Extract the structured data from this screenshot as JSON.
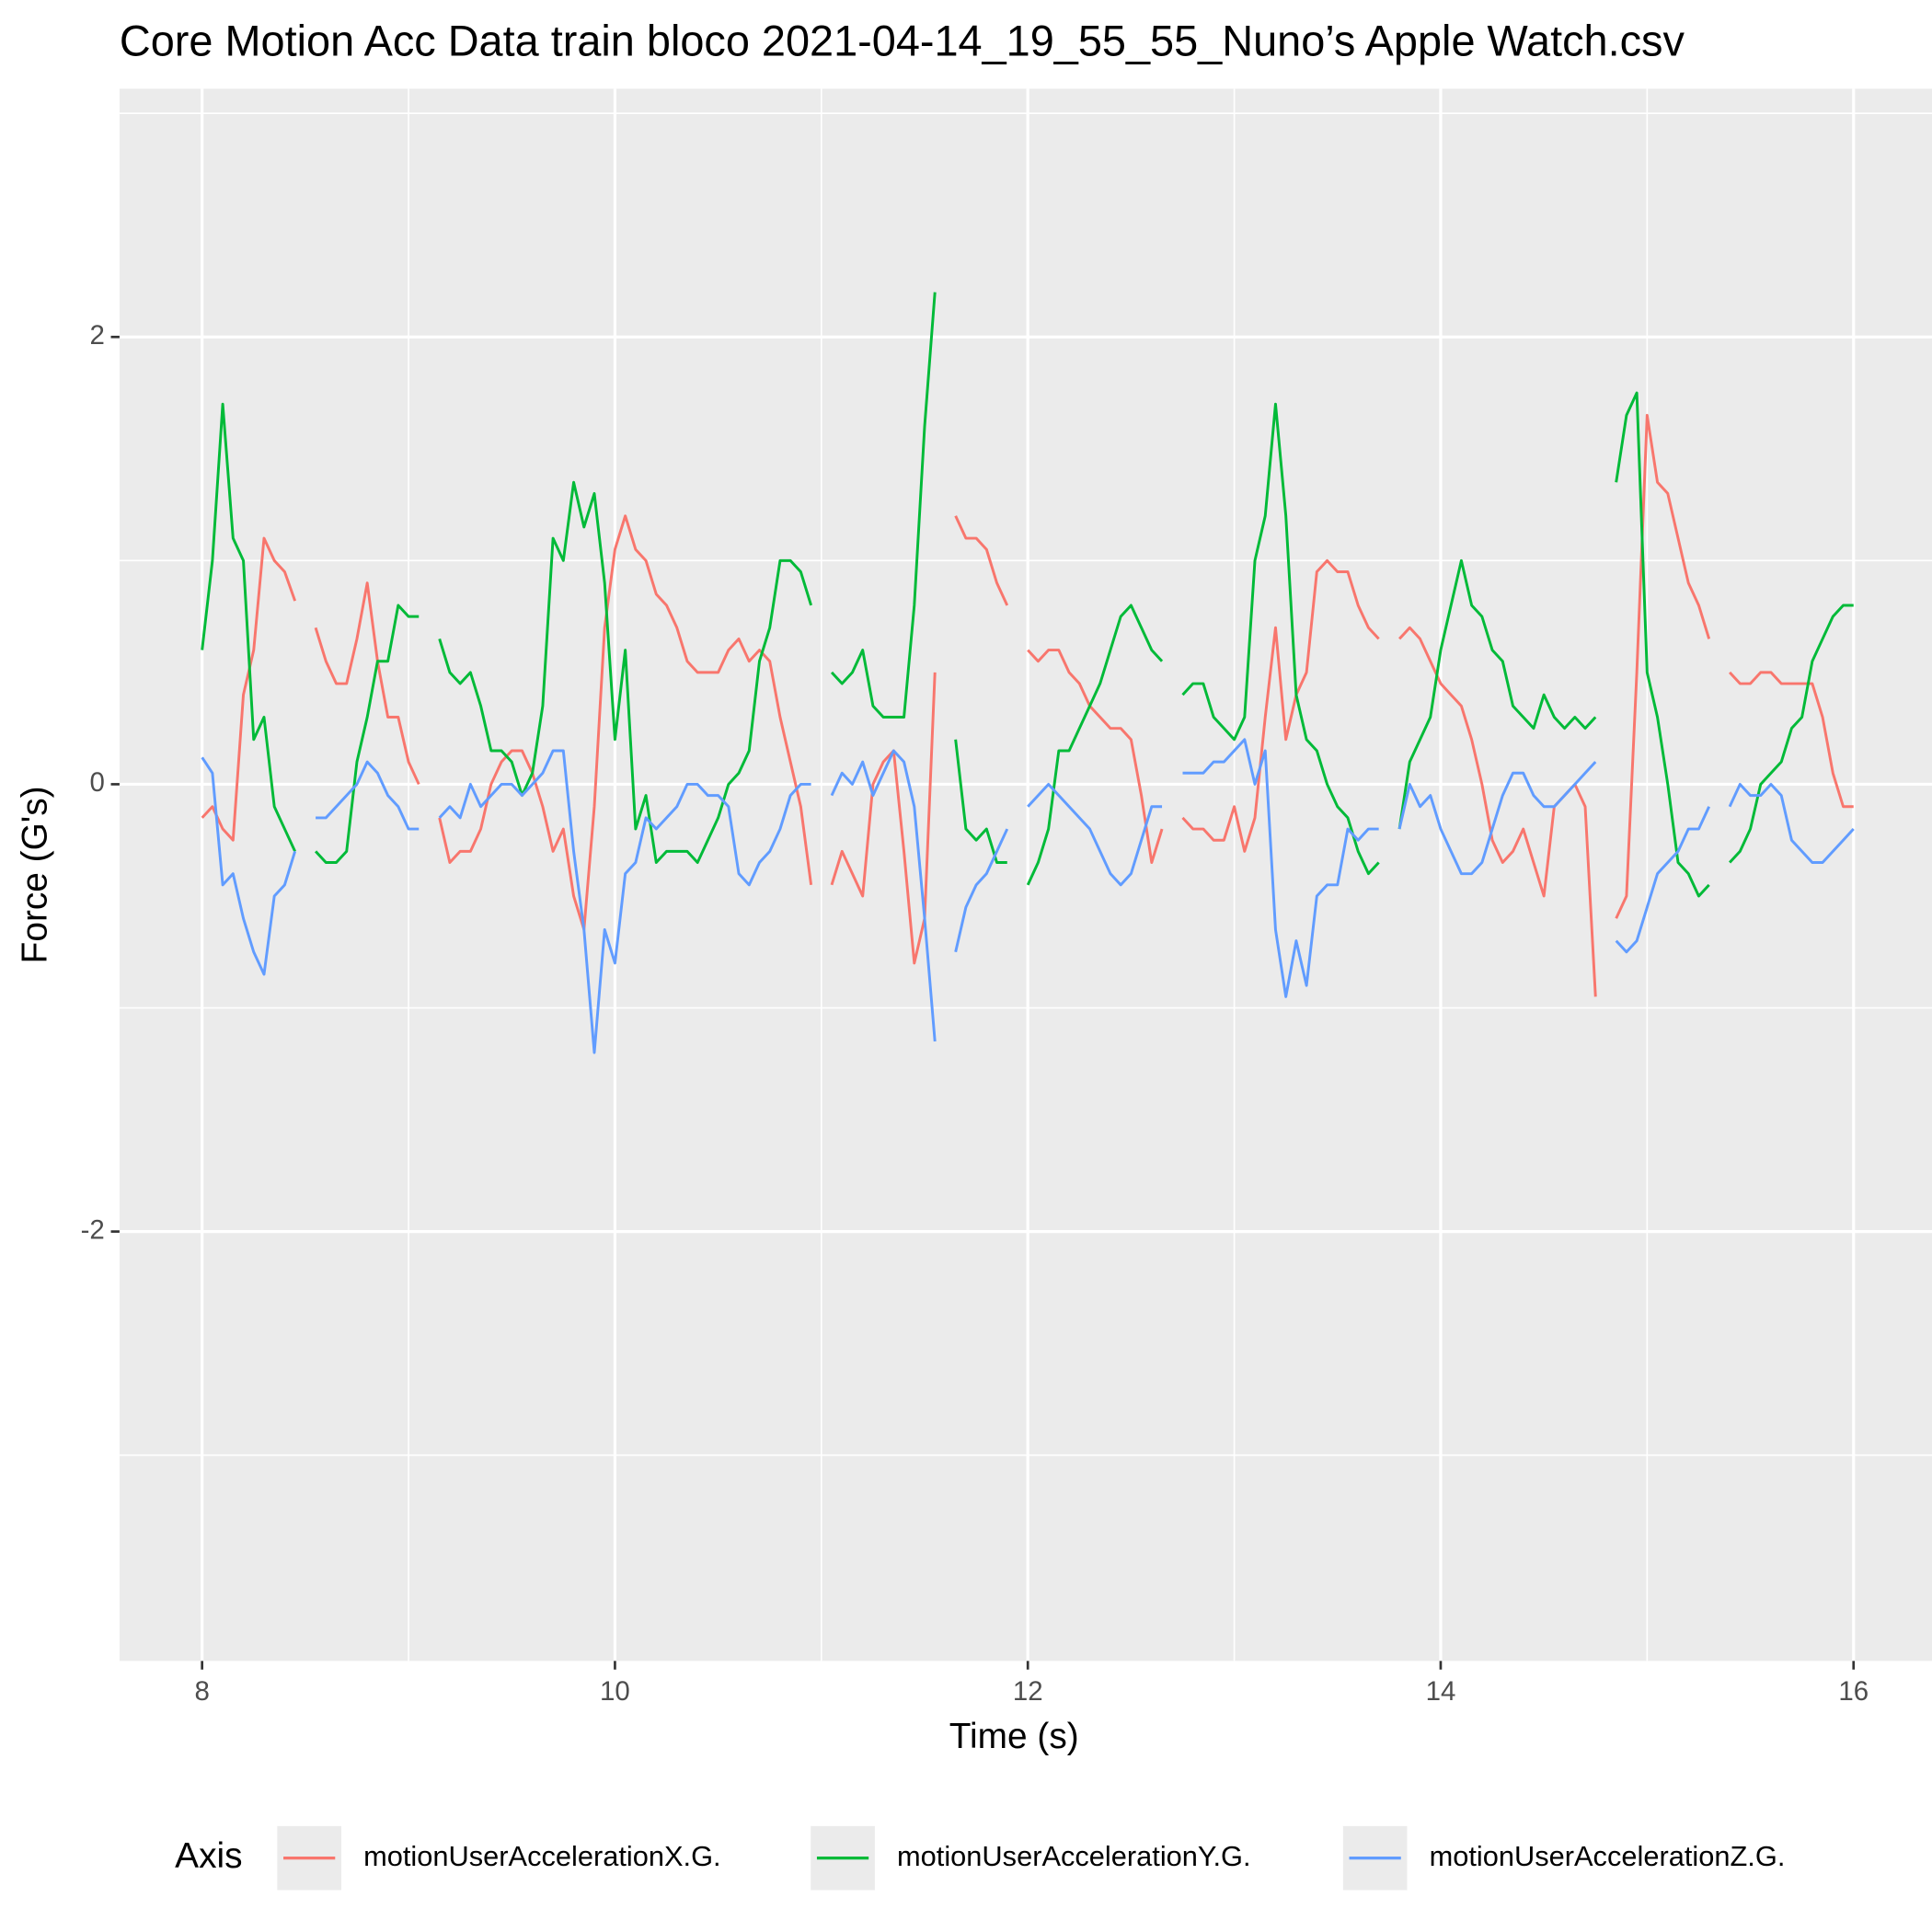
{
  "chart_data": {
    "type": "line",
    "title": "Core Motion Acc Data train bloco 2021-04-14_19_55_55_Nuno’s Apple Watch.csv",
    "x_label": "Time (s)",
    "y_label": "Force (G's)",
    "legend_title": "Axis",
    "legend_position": "bottom",
    "grid": true,
    "xlim": [
      7.6,
      16.38
    ],
    "xticks": [
      8,
      10,
      12,
      14,
      16
    ],
    "x_minor_ticks": [
      9,
      11,
      13,
      15
    ],
    "ylim": [
      -3.92,
      3.11
    ],
    "yticks": [
      -2,
      0,
      2
    ],
    "y_minor_ticks": [
      -3,
      -1,
      1,
      3
    ],
    "x": [
      8,
      8.05,
      8.1,
      8.15,
      8.2,
      8.25,
      8.3,
      8.35,
      8.4,
      8.45,
      8.5,
      8.55,
      8.6,
      8.65,
      8.7,
      8.75,
      8.8,
      8.85,
      8.9,
      8.95,
      9,
      9.05,
      9.1,
      9.15,
      9.2,
      9.25,
      9.3,
      9.35,
      9.4,
      9.45,
      9.5,
      9.55,
      9.6,
      9.65,
      9.7,
      9.75,
      9.8,
      9.85,
      9.9,
      9.95,
      10,
      10.05,
      10.1,
      10.15,
      10.2,
      10.25,
      10.3,
      10.35,
      10.4,
      10.45,
      10.5,
      10.55,
      10.6,
      10.65,
      10.7,
      10.75,
      10.8,
      10.85,
      10.9,
      10.95,
      11,
      11.05,
      11.1,
      11.15,
      11.2,
      11.25,
      11.3,
      11.35,
      11.4,
      11.45,
      11.5,
      11.55,
      11.6,
      11.65,
      11.7,
      11.75,
      11.8,
      11.85,
      11.9,
      11.95,
      12,
      12.05,
      12.1,
      12.15,
      12.2,
      12.25,
      12.3,
      12.35,
      12.4,
      12.45,
      12.5,
      12.55,
      12.6,
      12.65,
      12.7,
      12.75,
      12.8,
      12.85,
      12.9,
      12.95,
      13,
      13.05,
      13.1,
      13.15,
      13.2,
      13.25,
      13.3,
      13.35,
      13.4,
      13.45,
      13.5,
      13.55,
      13.6,
      13.65,
      13.7,
      13.75,
      13.8,
      13.85,
      13.9,
      13.95,
      14,
      14.05,
      14.1,
      14.15,
      14.2,
      14.25,
      14.3,
      14.35,
      14.4,
      14.45,
      14.5,
      14.55,
      14.6,
      14.65,
      14.7,
      14.75,
      14.8,
      14.85,
      14.9,
      14.95,
      15,
      15.05,
      15.1,
      15.15,
      15.2,
      15.25,
      15.3,
      15.35,
      15.4,
      15.45,
      15.5,
      15.55,
      15.6,
      15.65,
      15.7,
      15.75,
      15.8,
      15.85,
      15.9,
      15.95,
      16
    ],
    "series": [
      {
        "name": "motionUserAccelerationX.G.",
        "color": "#F8766D",
        "values": [
          -0.15,
          -0.1,
          -0.2,
          -0.25,
          0.4,
          0.6,
          1.1,
          1.0,
          0.95,
          0.82,
          null,
          0.7,
          0.55,
          0.45,
          0.45,
          0.65,
          0.9,
          0.55,
          0.3,
          0.3,
          0.1,
          0.0,
          null,
          -0.15,
          -0.35,
          -0.3,
          -0.3,
          -0.2,
          0.0,
          0.1,
          0.15,
          0.15,
          0.05,
          -0.1,
          -0.3,
          -0.2,
          -0.5,
          -0.65,
          -0.1,
          0.7,
          1.05,
          1.2,
          1.05,
          1.0,
          0.85,
          0.8,
          0.7,
          0.55,
          0.5,
          0.5,
          0.5,
          0.6,
          0.65,
          0.55,
          0.6,
          0.55,
          0.3,
          0.1,
          -0.1,
          -0.45,
          null,
          -0.45,
          -0.3,
          -0.4,
          -0.5,
          0.0,
          0.1,
          0.15,
          -0.3,
          -0.8,
          -0.6,
          0.5,
          null,
          1.2,
          1.1,
          1.1,
          1.05,
          0.9,
          0.8,
          null,
          0.6,
          0.55,
          0.6,
          0.6,
          0.5,
          0.45,
          0.35,
          0.3,
          0.25,
          0.25,
          0.2,
          -0.05,
          -0.35,
          -0.2,
          null,
          -0.15,
          -0.2,
          -0.2,
          -0.25,
          -0.25,
          -0.1,
          -0.3,
          -0.15,
          0.3,
          0.7,
          0.2,
          0.4,
          0.5,
          0.95,
          1.0,
          0.95,
          0.95,
          0.8,
          0.7,
          0.65,
          null,
          0.65,
          0.7,
          0.65,
          0.55,
          0.45,
          0.4,
          0.35,
          0.2,
          0.0,
          -0.25,
          -0.35,
          -0.3,
          -0.2,
          -0.35,
          -0.5,
          -0.1,
          -0.05,
          0.0,
          -0.1,
          -0.95,
          null,
          -0.6,
          -0.5,
          0.5,
          1.65,
          1.35,
          1.3,
          1.1,
          0.9,
          0.8,
          0.65,
          null,
          0.5,
          0.45,
          0.45,
          0.5,
          0.5,
          0.45,
          0.45,
          0.45,
          0.45,
          0.3,
          0.05,
          -0.1,
          -0.1
        ]
      },
      {
        "name": "motionUserAccelerationY.G.",
        "color": "#00BA38",
        "values": [
          0.6,
          1.0,
          1.7,
          1.1,
          1.0,
          0.2,
          0.3,
          -0.1,
          -0.2,
          -0.3,
          null,
          -0.3,
          -0.35,
          -0.35,
          -0.3,
          0.1,
          0.3,
          0.55,
          0.55,
          0.8,
          0.75,
          0.75,
          null,
          0.65,
          0.5,
          0.45,
          0.5,
          0.35,
          0.15,
          0.15,
          0.1,
          -0.05,
          0.05,
          0.35,
          1.1,
          1.0,
          1.35,
          1.15,
          1.3,
          0.9,
          0.2,
          0.6,
          -0.2,
          -0.05,
          -0.35,
          -0.3,
          -0.3,
          -0.3,
          -0.35,
          -0.25,
          -0.15,
          0.0,
          0.05,
          0.15,
          0.55,
          0.7,
          1.0,
          1.0,
          0.95,
          0.8,
          null,
          0.5,
          0.45,
          0.5,
          0.6,
          0.35,
          0.3,
          0.3,
          0.3,
          0.8,
          1.6,
          2.2,
          null,
          0.2,
          -0.2,
          -0.25,
          -0.2,
          -0.35,
          -0.35,
          null,
          -0.45,
          -0.35,
          -0.2,
          0.15,
          0.15,
          0.25,
          0.35,
          0.45,
          0.6,
          0.75,
          0.8,
          0.7,
          0.6,
          0.55,
          null,
          0.4,
          0.45,
          0.45,
          0.3,
          0.25,
          0.2,
          0.3,
          1.0,
          1.2,
          1.7,
          1.2,
          0.4,
          0.2,
          0.15,
          0.0,
          -0.1,
          -0.15,
          -0.3,
          -0.4,
          -0.35,
          null,
          -0.2,
          0.1,
          0.2,
          0.3,
          0.6,
          0.8,
          1.0,
          0.8,
          0.75,
          0.6,
          0.55,
          0.35,
          0.3,
          0.25,
          0.4,
          0.3,
          0.25,
          0.3,
          0.25,
          0.3,
          null,
          1.35,
          1.65,
          1.75,
          0.5,
          0.3,
          0.0,
          -0.35,
          -0.4,
          -0.5,
          -0.45,
          null,
          -0.35,
          -0.3,
          -0.2,
          0.0,
          0.05,
          0.1,
          0.25,
          0.3,
          0.55,
          0.65,
          0.75,
          0.8,
          0.8
        ]
      },
      {
        "name": "motionUserAccelerationZ.G.",
        "color": "#619CFF",
        "values": [
          0.12,
          0.05,
          -0.45,
          -0.4,
          -0.6,
          -0.75,
          -0.85,
          -0.5,
          -0.45,
          -0.3,
          null,
          -0.15,
          -0.15,
          -0.1,
          -0.05,
          0.0,
          0.1,
          0.05,
          -0.05,
          -0.1,
          -0.2,
          -0.2,
          null,
          -0.15,
          -0.1,
          -0.15,
          0.0,
          -0.1,
          -0.05,
          0.0,
          0.0,
          -0.05,
          0.0,
          0.05,
          0.15,
          0.15,
          -0.3,
          -0.65,
          -1.2,
          -0.65,
          -0.8,
          -0.4,
          -0.35,
          -0.15,
          -0.2,
          -0.15,
          -0.1,
          0.0,
          0.0,
          -0.05,
          -0.05,
          -0.1,
          -0.4,
          -0.45,
          -0.35,
          -0.3,
          -0.2,
          -0.05,
          0.0,
          0.0,
          null,
          -0.05,
          0.05,
          0.0,
          0.1,
          -0.05,
          0.05,
          0.15,
          0.1,
          -0.1,
          -0.6,
          -1.15,
          null,
          -0.75,
          -0.55,
          -0.45,
          -0.4,
          -0.3,
          -0.2,
          null,
          -0.1,
          -0.05,
          0.0,
          -0.05,
          -0.1,
          -0.15,
          -0.2,
          -0.3,
          -0.4,
          -0.45,
          -0.4,
          -0.25,
          -0.1,
          -0.1,
          null,
          0.05,
          0.05,
          0.05,
          0.1,
          0.1,
          0.15,
          0.2,
          0.0,
          0.15,
          -0.65,
          -0.95,
          -0.7,
          -0.9,
          -0.5,
          -0.45,
          -0.45,
          -0.2,
          -0.25,
          -0.2,
          -0.2,
          null,
          -0.2,
          0.0,
          -0.1,
          -0.05,
          -0.2,
          -0.3,
          -0.4,
          -0.4,
          -0.35,
          -0.2,
          -0.05,
          0.05,
          0.05,
          -0.05,
          -0.1,
          -0.1,
          -0.05,
          0.0,
          0.05,
          0.1,
          null,
          -0.7,
          -0.75,
          -0.7,
          -0.55,
          -0.4,
          -0.35,
          -0.3,
          -0.2,
          -0.2,
          -0.1,
          null,
          -0.1,
          0.0,
          -0.05,
          -0.05,
          0.0,
          -0.05,
          -0.25,
          -0.3,
          -0.35,
          -0.35,
          -0.3,
          -0.25,
          -0.2
        ]
      }
    ]
  }
}
